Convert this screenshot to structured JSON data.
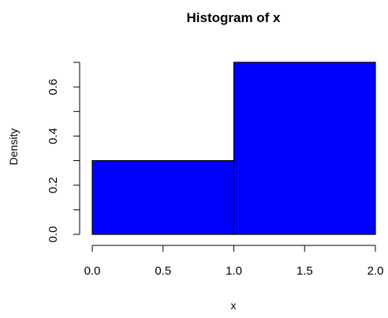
{
  "chart_data": {
    "type": "bar",
    "title": "Histogram of x",
    "xlabel": "x",
    "ylabel": "Density",
    "bins": [
      {
        "start": 0.0,
        "end": 1.0,
        "value": 0.3
      },
      {
        "start": 1.0,
        "end": 2.0,
        "value": 0.7
      }
    ],
    "xlim": [
      0.0,
      2.0
    ],
    "ylim": [
      0.0,
      0.7
    ],
    "x_ticks": [
      {
        "value": 0.0,
        "label": "0.0"
      },
      {
        "value": 0.5,
        "label": "0.5"
      },
      {
        "value": 1.0,
        "label": "1.0"
      },
      {
        "value": 1.5,
        "label": "1.5"
      },
      {
        "value": 2.0,
        "label": "2.0"
      }
    ],
    "y_ticks": [
      {
        "value": 0.0,
        "label": "0.0"
      },
      {
        "value": 0.1,
        "label": ""
      },
      {
        "value": 0.2,
        "label": "0.2"
      },
      {
        "value": 0.3,
        "label": ""
      },
      {
        "value": 0.4,
        "label": "0.4"
      },
      {
        "value": 0.5,
        "label": ""
      },
      {
        "value": 0.6,
        "label": "0.6"
      },
      {
        "value": 0.7,
        "label": ""
      }
    ],
    "grid": false,
    "legend": "none",
    "bar_color": "#0000ff",
    "edge_color": "#000000"
  }
}
